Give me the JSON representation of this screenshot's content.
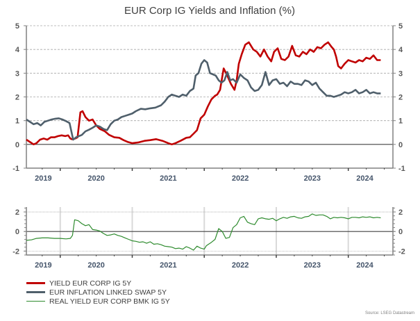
{
  "chart_data": [
    {
      "type": "line",
      "title": "EUR Corp IG Yields and Inflation (%)",
      "xlabel": "",
      "ylabel": "",
      "xlim": [
        2019.53,
        2024.62
      ],
      "ylim": [
        -1,
        5
      ],
      "yticks": [
        -1,
        0,
        1,
        2,
        3,
        4,
        5
      ],
      "yticks_right": [
        -1,
        0,
        1,
        2,
        3,
        4,
        5
      ],
      "xtick_labels": [
        "2019",
        "2020",
        "2021",
        "2022",
        "2023",
        "2024"
      ],
      "grid": "horizontal-dashed",
      "series": [
        {
          "name": "YIELD EUR CORP IG 5Y",
          "color": "#C00000",
          "x": [
            2019.53,
            2019.58,
            2019.63,
            2019.67,
            2019.72,
            2019.77,
            2019.82,
            2019.87,
            2019.92,
            2019.97,
            2020.02,
            2020.07,
            2020.11,
            2020.14,
            2020.16,
            2020.18,
            2020.21,
            2020.24,
            2020.28,
            2020.31,
            2020.35,
            2020.4,
            2020.45,
            2020.5,
            2020.55,
            2020.62,
            2020.68,
            2020.75,
            2020.82,
            2020.88,
            2020.94,
            2021.0,
            2021.08,
            2021.17,
            2021.25,
            2021.33,
            2021.42,
            2021.5,
            2021.55,
            2021.6,
            2021.67,
            2021.75,
            2021.8,
            2021.85,
            2021.9,
            2021.95,
            2022.0,
            2022.05,
            2022.1,
            2022.15,
            2022.18,
            2022.22,
            2022.27,
            2022.32,
            2022.37,
            2022.42,
            2022.45,
            2022.48,
            2022.52,
            2022.57,
            2022.62,
            2022.68,
            2022.73,
            2022.78,
            2022.83,
            2022.88,
            2022.93,
            2022.97,
            2023.02,
            2023.07,
            2023.12,
            2023.17,
            2023.22,
            2023.27,
            2023.32,
            2023.37,
            2023.42,
            2023.47,
            2023.52,
            2023.57,
            2023.62,
            2023.67,
            2023.72,
            2023.77,
            2023.8,
            2023.83,
            2023.86,
            2023.9,
            2023.95,
            2024.0,
            2024.05,
            2024.1,
            2024.15,
            2024.2,
            2024.25,
            2024.3,
            2024.35,
            2024.4,
            2024.45
          ],
          "values": [
            0.2,
            0.1,
            0.0,
            0.05,
            0.2,
            0.25,
            0.2,
            0.3,
            0.3,
            0.35,
            0.38,
            0.35,
            0.38,
            0.25,
            0.22,
            0.22,
            0.25,
            0.3,
            1.35,
            1.4,
            1.15,
            1.0,
            1.05,
            0.8,
            0.65,
            0.55,
            0.4,
            0.3,
            0.28,
            0.18,
            0.1,
            0.05,
            0.08,
            0.15,
            0.18,
            0.22,
            0.15,
            0.05,
            0.0,
            0.05,
            0.15,
            0.28,
            0.3,
            0.45,
            0.6,
            1.1,
            1.25,
            1.6,
            1.9,
            2.05,
            2.1,
            2.3,
            3.2,
            2.9,
            2.55,
            2.3,
            2.7,
            3.4,
            3.8,
            4.2,
            4.3,
            4.0,
            3.9,
            3.7,
            4.0,
            3.7,
            3.5,
            3.9,
            4.05,
            3.6,
            3.55,
            3.7,
            4.15,
            3.75,
            3.7,
            3.9,
            3.8,
            4.0,
            3.9,
            4.1,
            4.05,
            4.2,
            4.3,
            4.1,
            4.0,
            3.7,
            3.3,
            3.2,
            3.4,
            3.55,
            3.5,
            3.45,
            3.55,
            3.5,
            3.65,
            3.6,
            3.75,
            3.55,
            3.55
          ]
        },
        {
          "name": "EUR INFLATION LINKED SWAP 5Y",
          "color": "#4F5F6B",
          "x": [
            2019.53,
            2019.58,
            2019.63,
            2019.68,
            2019.73,
            2019.78,
            2019.83,
            2019.88,
            2019.93,
            2019.98,
            2020.03,
            2020.08,
            2020.13,
            2020.18,
            2020.22,
            2020.26,
            2020.3,
            2020.35,
            2020.4,
            2020.45,
            2020.5,
            2020.55,
            2020.6,
            2020.65,
            2020.7,
            2020.75,
            2020.8,
            2020.85,
            2020.9,
            2020.95,
            2021.0,
            2021.05,
            2021.12,
            2021.18,
            2021.25,
            2021.32,
            2021.4,
            2021.45,
            2021.5,
            2021.55,
            2021.6,
            2021.65,
            2021.7,
            2021.75,
            2021.8,
            2021.85,
            2021.88,
            2021.92,
            2021.96,
            2022.0,
            2022.04,
            2022.08,
            2022.12,
            2022.16,
            2022.2,
            2022.24,
            2022.28,
            2022.32,
            2022.36,
            2022.4,
            2022.45,
            2022.5,
            2022.55,
            2022.6,
            2022.65,
            2022.7,
            2022.75,
            2022.8,
            2022.85,
            2022.9,
            2022.95,
            2023.0,
            2023.05,
            2023.1,
            2023.15,
            2023.2,
            2023.25,
            2023.3,
            2023.35,
            2023.4,
            2023.45,
            2023.5,
            2023.55,
            2023.6,
            2023.65,
            2023.7,
            2023.75,
            2023.8,
            2023.85,
            2023.9,
            2023.95,
            2024.0,
            2024.05,
            2024.1,
            2024.15,
            2024.2,
            2024.25,
            2024.3,
            2024.35,
            2024.4,
            2024.45
          ],
          "values": [
            1.05,
            0.95,
            0.85,
            0.9,
            0.8,
            0.95,
            1.0,
            1.05,
            1.08,
            1.1,
            1.05,
            0.98,
            0.9,
            0.2,
            0.3,
            0.35,
            0.4,
            0.55,
            0.62,
            0.7,
            0.8,
            0.75,
            0.65,
            0.6,
            0.85,
            1.0,
            1.05,
            1.15,
            1.2,
            1.25,
            1.3,
            1.4,
            1.5,
            1.48,
            1.52,
            1.55,
            1.65,
            1.8,
            2.0,
            2.1,
            2.05,
            2.0,
            2.1,
            2.05,
            2.25,
            2.35,
            2.9,
            3.0,
            3.4,
            3.55,
            3.45,
            3.0,
            2.95,
            2.9,
            2.7,
            2.6,
            2.7,
            3.05,
            2.7,
            2.75,
            2.6,
            2.95,
            2.8,
            2.7,
            2.4,
            2.25,
            2.3,
            2.5,
            3.05,
            2.5,
            2.7,
            2.75,
            2.55,
            2.6,
            2.45,
            2.65,
            2.55,
            2.55,
            2.5,
            2.7,
            2.65,
            2.5,
            2.6,
            2.35,
            2.2,
            2.05,
            2.05,
            2.0,
            2.05,
            2.1,
            2.2,
            2.15,
            2.2,
            2.3,
            2.15,
            2.2,
            2.3,
            2.15,
            2.2,
            2.15,
            2.15
          ]
        }
      ]
    },
    {
      "type": "line",
      "title": "",
      "xlim": [
        2019.53,
        2024.62
      ],
      "ylim": [
        -2.4,
        2.5
      ],
      "yticks": [
        -2,
        0,
        2
      ],
      "yticks_right": [
        -2,
        0,
        2
      ],
      "xtick_labels": [
        "2019",
        "2020",
        "2021",
        "2022",
        "2023",
        "2024"
      ],
      "grid": "vertical-year-lines",
      "series": [
        {
          "name": "REAL YIELD EUR CORP BMK IG 5Y",
          "color": "#2E8B2E",
          "x": [
            2019.53,
            2019.6,
            2019.67,
            2019.75,
            2019.83,
            2019.92,
            2020.0,
            2020.08,
            2020.14,
            2020.17,
            2020.2,
            2020.25,
            2020.3,
            2020.35,
            2020.4,
            2020.45,
            2020.5,
            2020.55,
            2020.6,
            2020.65,
            2020.7,
            2020.75,
            2020.8,
            2020.85,
            2020.9,
            2020.95,
            2021.0,
            2021.05,
            2021.1,
            2021.15,
            2021.2,
            2021.25,
            2021.3,
            2021.35,
            2021.4,
            2021.45,
            2021.5,
            2021.55,
            2021.6,
            2021.65,
            2021.7,
            2021.75,
            2021.8,
            2021.85,
            2021.9,
            2021.95,
            2022.0,
            2022.03,
            2022.06,
            2022.1,
            2022.15,
            2022.2,
            2022.25,
            2022.3,
            2022.35,
            2022.4,
            2022.45,
            2022.5,
            2022.55,
            2022.6,
            2022.65,
            2022.7,
            2022.75,
            2022.8,
            2022.85,
            2022.9,
            2022.95,
            2023.0,
            2023.05,
            2023.1,
            2023.15,
            2023.2,
            2023.25,
            2023.3,
            2023.35,
            2023.4,
            2023.45,
            2023.5,
            2023.55,
            2023.6,
            2023.65,
            2023.7,
            2023.75,
            2023.8,
            2023.85,
            2023.9,
            2023.95,
            2024.0,
            2024.05,
            2024.1,
            2024.15,
            2024.2,
            2024.25,
            2024.3,
            2024.35,
            2024.4,
            2024.45
          ],
          "values": [
            -0.9,
            -0.85,
            -0.7,
            -0.65,
            -0.65,
            -0.7,
            -0.7,
            -0.75,
            -0.7,
            -0.4,
            1.2,
            1.1,
            0.8,
            0.6,
            0.7,
            0.2,
            0.15,
            0.05,
            -0.2,
            -0.4,
            -0.35,
            -0.25,
            -0.4,
            -0.5,
            -0.65,
            -0.8,
            -0.95,
            -1.0,
            -1.1,
            -1.05,
            -1.2,
            -1.05,
            -1.3,
            -1.25,
            -1.35,
            -1.5,
            -1.55,
            -1.6,
            -1.75,
            -1.7,
            -1.8,
            -1.55,
            -1.7,
            -1.9,
            -1.5,
            -1.7,
            -1.8,
            -1.45,
            -1.3,
            -1.1,
            -0.8,
            0.3,
            0.0,
            -0.7,
            -0.6,
            0.4,
            0.7,
            1.4,
            1.55,
            0.95,
            0.8,
            0.7,
            1.3,
            1.4,
            1.3,
            1.25,
            1.35,
            1.1,
            1.3,
            1.45,
            1.35,
            1.5,
            1.55,
            1.4,
            1.35,
            1.5,
            1.55,
            1.8,
            1.65,
            1.7,
            1.7,
            1.55,
            1.3,
            1.45,
            1.4,
            1.45,
            1.4,
            1.3,
            1.45,
            1.45,
            1.4,
            1.5,
            1.45,
            1.5,
            1.4,
            1.45,
            1.4
          ]
        }
      ]
    }
  ],
  "legend": [
    {
      "label": "YIELD EUR CORP IG 5Y",
      "color": "#C00000"
    },
    {
      "label": "EUR INFLATION LINKED SWAP 5Y",
      "color": "#4F5F6B"
    },
    {
      "label": "REAL YIELD EUR CORP BMK IG 5Y",
      "color": "#2E8B2E"
    }
  ],
  "source": "Source: LSEG Datastream"
}
